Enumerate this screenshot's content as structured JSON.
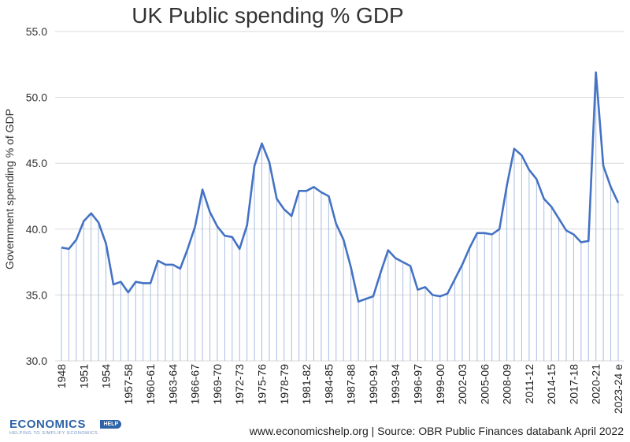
{
  "chart_data": {
    "type": "area",
    "title": "UK Public spending % GDP",
    "xlabel": "",
    "ylabel": "Government spending % of GDP",
    "ylim": [
      30,
      55
    ],
    "yticks": [
      "30.0",
      "35.0",
      "40.0",
      "45.0",
      "50.0",
      "55.0"
    ],
    "grid": true,
    "x_tick_labels": [
      "1948",
      "1951",
      "1954",
      "1957-58",
      "1960-61",
      "1963-64",
      "1966-67",
      "1969-70",
      "1972-73",
      "1975-76",
      "1978-79",
      "1981-82",
      "1984-85",
      "1987-88",
      "1990-91",
      "1993-94",
      "1996-97",
      "1999-00",
      "2002-03",
      "2005-06",
      "2008-09",
      "2011-12",
      "2014-15",
      "2017-18",
      "2020-21",
      "2023-24 e"
    ],
    "series": [
      {
        "name": "Government spending % of GDP",
        "color": "#4472c4",
        "values": [
          38.6,
          38.5,
          39.2,
          40.6,
          41.2,
          40.5,
          38.9,
          35.8,
          36.0,
          35.2,
          36.0,
          35.9,
          35.9,
          37.6,
          37.3,
          37.3,
          37.0,
          38.5,
          40.2,
          43.0,
          41.3,
          40.2,
          39.5,
          39.4,
          38.5,
          40.3,
          44.8,
          46.5,
          45.1,
          42.3,
          41.5,
          41.0,
          42.9,
          42.9,
          43.2,
          42.8,
          42.5,
          40.4,
          39.2,
          37.1,
          34.5,
          34.7,
          34.9,
          36.7,
          38.4,
          37.8,
          37.5,
          37.2,
          35.4,
          35.6,
          35.0,
          34.9,
          35.1,
          36.2,
          37.3,
          38.6,
          39.7,
          39.7,
          39.6,
          40.0,
          43.3,
          46.1,
          45.6,
          44.5,
          43.8,
          42.3,
          41.7,
          40.8,
          39.9,
          39.6,
          39.0,
          39.1,
          51.9,
          44.8,
          43.2,
          42.0
        ]
      }
    ]
  },
  "footer": {
    "source": "www.economicshelp.org  | Source: OBR Public Finances databank April 2022"
  },
  "logo": {
    "main": "ECONOMICS",
    "badge": "HELP",
    "tagline": "HELPING TO SIMPLIFY ECONOMICS"
  },
  "colors": {
    "line": "#4472c4",
    "drop": "#a9bde0",
    "grid": "#d9d9d9"
  }
}
